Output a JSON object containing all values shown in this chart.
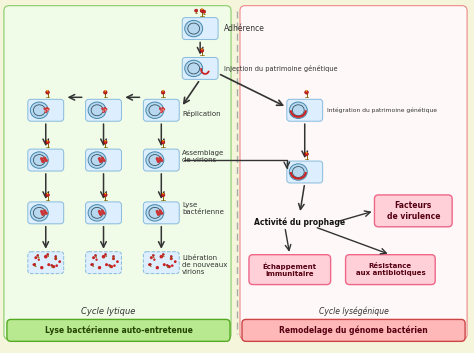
{
  "bg_color": "#f5f5dc",
  "cell_face": "#ddeeff",
  "cell_edge": "#88bbdd",
  "bact_face": "#b8d8f0",
  "bact_edge": "#4488aa",
  "ring_edge": "#335566",
  "phage_head": "#cc2222",
  "phage_edge": "#880000",
  "phage_tail": "#886600",
  "phage_dot": "#ffcc00",
  "red_dot": "#cc2222",
  "arrow_color": "#333333",
  "left_bg_face": "#f0fce8",
  "left_bg_edge": "#88cc66",
  "right_bg_face": "#fff8f8",
  "right_bg_edge": "#ee8888",
  "green_box_face": "#b8e890",
  "green_box_edge": "#55aa22",
  "green_box_text": "#224400",
  "pink_box_face": "#ffb8b8",
  "pink_box_edge": "#cc4444",
  "pink_box_text": "#550011",
  "pink_light_face": "#ffd0d8",
  "pink_light_edge": "#ee6688",
  "dash_color": "#aaaaaa",
  "label_color": "#333333",
  "bold_label_color": "#111111",
  "lytic_label": "Cycle lytique",
  "lysogenic_label": "Cycle lységénique",
  "bottom_left": "Lyse bactérienne auto-entretenue",
  "bottom_right": "Remodelage du génome bactérien",
  "step_adhere": "Adhérence",
  "step_inject": "Injection du patrimoine génétique",
  "step_integrate": "Intégration du patrimoine génétique",
  "step_replicate": "Réplication",
  "step_assemble": "Assemblage\nde virions",
  "step_lyse": "Lyse\nbactérienne",
  "step_liberate": "Libération\nde nouveaux\nvirions",
  "step_activite": "Activité du prophage",
  "box_virulence": "Facteurs\nde virulence",
  "box_echappement": "Échappement\nimmunitaire",
  "box_resistance": "Résistance\naux antibiotiques"
}
